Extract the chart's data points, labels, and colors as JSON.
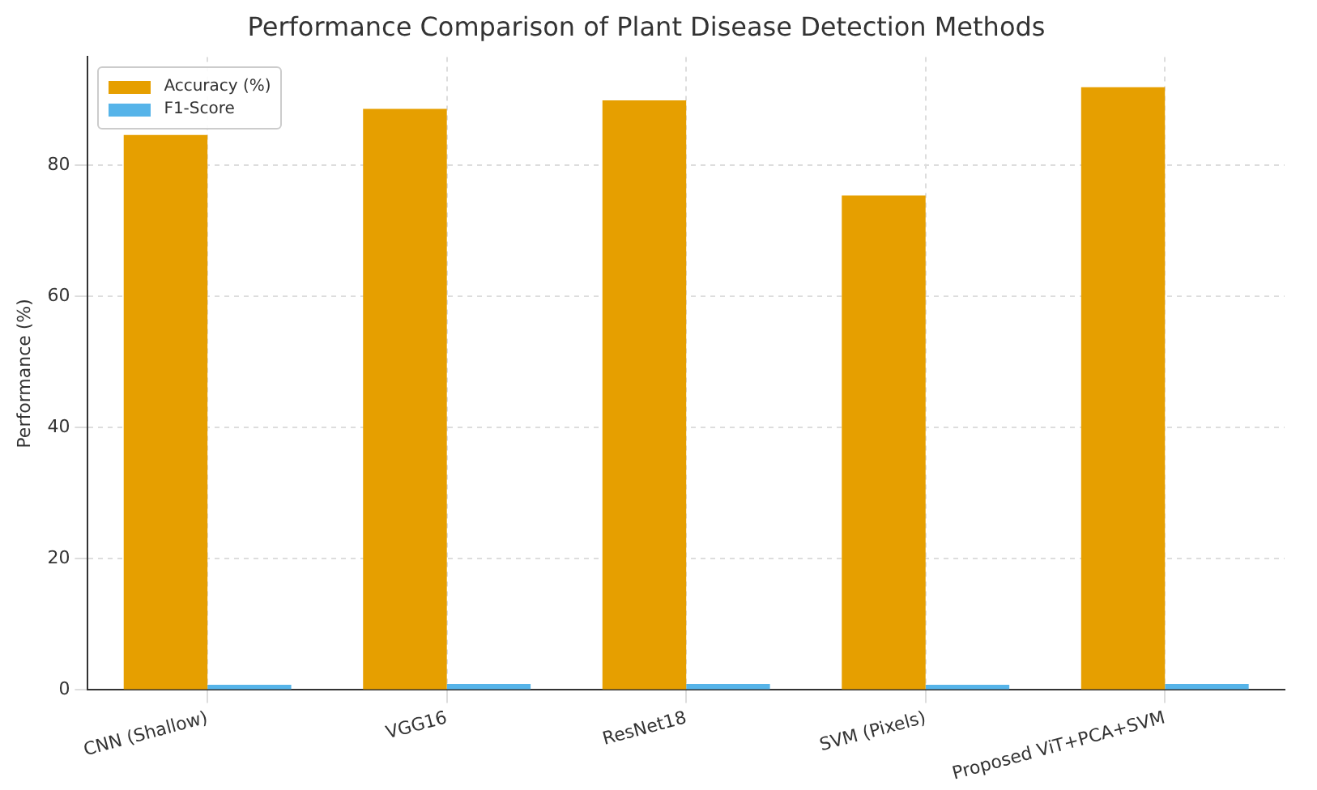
{
  "chart_data": {
    "type": "bar",
    "title": "Performance Comparison of Plant Disease Detection Methods",
    "ylabel": "Performance (%)",
    "categories": [
      "CNN (Shallow)",
      "VGG16",
      "ResNet18",
      "SVM (Pixels)",
      "Proposed ViT+PCA+SVM"
    ],
    "series": [
      {
        "name": "Accuracy (%)",
        "color": "#e69f00",
        "values": [
          84.6,
          88.6,
          89.9,
          75.4,
          91.9
        ]
      },
      {
        "name": "F1-Score",
        "color": "#56b4e9",
        "values": [
          0.8,
          0.9,
          0.9,
          0.8,
          0.9
        ]
      }
    ],
    "ylim": [
      0,
      96.5
    ],
    "yticks": [
      0,
      20,
      40,
      60,
      80
    ],
    "grid": true,
    "legend": "top left"
  }
}
